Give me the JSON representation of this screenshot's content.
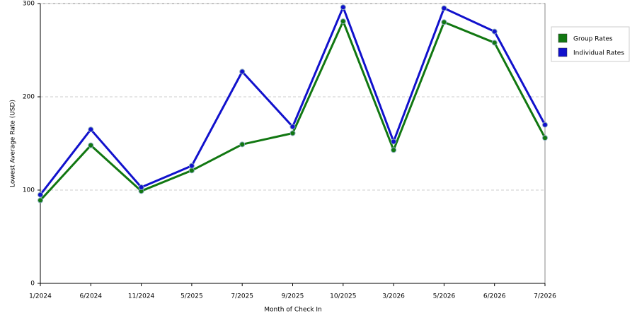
{
  "chart_data": {
    "type": "line",
    "x_label": "Month of Check In",
    "y_label": "Lowest Average Rate (USD)",
    "categories": [
      "1/2024",
      "6/2024",
      "11/2024",
      "5/2025",
      "7/2025",
      "9/2025",
      "10/2025",
      "3/2026",
      "5/2026",
      "6/2026",
      "7/2026"
    ],
    "series": [
      {
        "name": "Group Rates",
        "color": "#117711",
        "values": [
          89,
          148,
          99,
          121,
          149,
          161,
          281,
          143,
          280,
          258,
          156
        ]
      },
      {
        "name": "Individual Rates",
        "color": "#1111cc",
        "values": [
          95,
          165,
          103,
          126,
          227,
          168,
          296,
          152,
          295,
          270,
          170
        ]
      }
    ],
    "ylim": [
      0,
      300
    ],
    "yticks": [
      0,
      100,
      200,
      300
    ],
    "grid": true,
    "legend": "right"
  }
}
